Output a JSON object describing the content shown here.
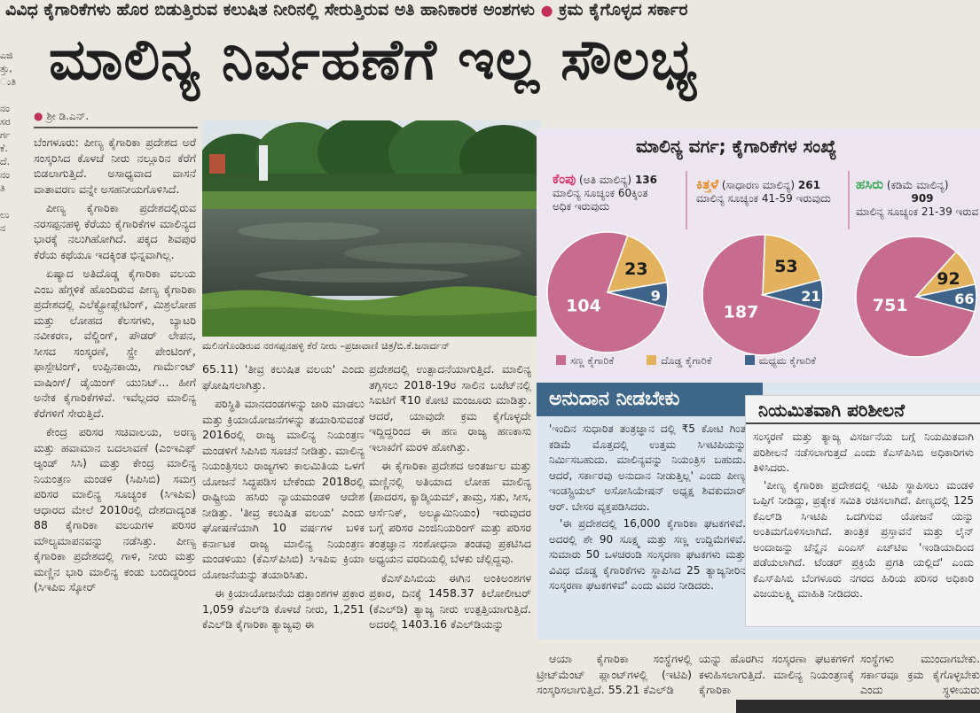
{
  "kicker": {
    "left": "ವಿವಿಧ ಕೈಗಾರಿಕೆಗಳು ಹೊರ ಬಿಡುತ್ತಿರುವ ಕಲುಷಿತ ನೀರಿನಲ್ಲಿ ಸೇರುತ್ತಿರುವ ಅತಿ ಹಾನಿಕಾರಕ ಅಂಶಗಳು",
    "dot": "●",
    "right": "ಕ್ರಮ ಕೈಗೊಳ್ಳದ ಸರ್ಕಾರ"
  },
  "headline": "ಮಾಲಿನ್ಯ ನಿರ್ವಹಣೆಗೆ ಇಲ್ಲ ಸೌಲಭ್ಯ",
  "left_strip": [
    "ಎಜಿ",
    "ತ್ತು,",
    "ುತಿ",
    "",
    "ನಂ",
    "ಸರ",
    "ರ್ಗ",
    "ಕೆ.",
    "ದೆ.",
    "ನಂ",
    "ತಿ",
    "",
    "ಲು",
    "ನ"
  ],
  "byline": {
    "bullet": "●",
    "name": "ಶ್ರೀ ಡಿ.ಎನ್."
  },
  "col1": {
    "paras": [
      "ಬೆಂಗಳೂರು: ಪೀಣ್ಯ ಕೈಗಾರಿಕಾ ಪ್ರದೇಶದ ಅರೆ ಸಂಸ್ಕರಿಸಿದ ಕೊಳಚೆ ನೀರು ನಲ್ಲೂರಿನ ಕೆರೆಗೆ ಬಿಡಲಾಗುತ್ತಿದೆ. ಅಸಾಧ್ಯವಾದ ವಾಸನೆ ವಾತಾವರಣ ವನ್ನೇ ಅಸಹನೀಯಗೊಳಿಸಿದೆ.",
      "ಪೀಣ್ಯ ಕೈಗಾರಿಕಾ ಪ್ರದೇಶದಲ್ಲಿರುವ ನರಸಪ್ಪನಹಳ್ಳಿ ಕೆರೆಯು ಕೈಗಾರಿಕೆಗಳ ಮಾಲಿನ್ಯದ ಭಾರಕ್ಕೆ ನಲುಗಿಹೋಗಿದೆ. ಪಕ್ಕದ ಶಿವಪುರ ಕೆರೆಯ ಕಥೆಯೂ ಇದಕ್ಕಿಂತ ಭಿನ್ನವಾಗಿಲ್ಲ.",
      "ಏಷ್ಯಾದ ಅತಿದೊಡ್ಡ ಕೈಗಾರಿಕಾ ವಲಯ ಎಂಬ ಹೆಗ್ಗಳಿಕೆ ಹೊಂದಿರುವ ಪೀಣ್ಯ ಕೈಗಾರಿಕಾ ಪ್ರದೇಶದಲ್ಲಿ ಎಲೆಕ್ಟ್ರೋಪ್ಲೇಟಿಂಗ್, ಮಿಶ್ರಲೋಹ ಮತ್ತು ಲೋಹದ ಕೆಲಸಗಳು, ಬ್ಯಾಟರಿ ನವೀಕರಣ, ವೆಲ್ಡಿಂಗ್, ಪೌಡರ್ ಲೇಪನ, ಸೀಸದ ಸಂಸ್ಕರಣೆ, ಸ್ಪ್ರೇ ಪೇಂಟಿಂಗ್, ಫಾಸ್ಪೇಟಿಂಗ್, ಉಪ್ಪಿನಕಾಯಿ, ಗಾರ್ಮೆಂಟ್ ವಾಷಿಂಗ್/ ಡೈಯಿಂಗ್ ಯುನಿಟ್... ಹೀಗೆ ಅನೇಕ ಕೈಗಾರಿಕೆಗಳಿವೆ. ಇವೆಲ್ಲದರ ಮಾಲಿನ್ಯ ಕೆರೆಗಳಿಗೆ ಸೇರುತ್ತಿದೆ.",
      "ಕೇಂದ್ರ ಪರಿಸರ ಸಚಿವಾಲಯ, ಅರಣ್ಯ ಮತ್ತು ಹವಾಮಾನ ಬದಲಾವಣೆ (ಎಂಇಎಫ್ ಆ್ಯಂಡ್ ಸಿಸಿ) ಮತ್ತು ಕೇಂದ್ರ ಮಾಲಿನ್ಯ ನಿಯಂತ್ರಣ ಮಂಡಳಿ (ಸಿಪಿಸಿಬಿ) ಸಮಗ್ರ ಪರಿಸರ ಮಾಲಿನ್ಯ ಸೂಚ್ಯಂಕ (ಸಿಇಪಿಐ) ಆಧಾರದ ಮೇಲೆ 2010ರಲ್ಲಿ ದೇಶದಾದ್ಯಂತ 88 ಕೈಗಾರಿಕಾ ವಲಯಗಳ ಪರಿಸರ ಮೌಲ್ಯಮಾಪನವನ್ನು ನಡೆಸಿತ್ತು. ಪೀಣ್ಯ ಕೈಗಾರಿಕಾ ಪ್ರದೇಶದಲ್ಲಿ ಗಾಳಿ, ನೀರು ಮತ್ತು ಮಣ್ಣಿನ ಭಾರಿ ಮಾಲಿನ್ಯ ಕಂಡು ಬಂದಿದ್ದರಿಂದ (ಸಿಇಪಿಐ ಸ್ಕೋರ್"
    ]
  },
  "photo": {
    "caption": "ಮಲಿನಗೊಂಡಿರುವ ನರಸಪ್ಪನಹಳ್ಳಿ ಕೆರೆ ನೀರು –ಪ್ರಜಾವಾಣಿ ಚಿತ್ರ/ಬಿ.ಕೆ.ಜನಾರ್ದನ್"
  },
  "col2": {
    "paras": [
      "65.11) 'ತೀವ್ರ ಕಲುಷಿತ ವಲಯ' ಎಂದು ಘೋಷಿಸಲಾಗಿತ್ತು.",
      "ಪರಿಸ್ಥಿತಿ ಮಾನದಂಡಗಳನ್ನು ಜಾರಿ ಮಾಡಲು ಮತ್ತು ಕ್ರಿಯಾಯೋಜನೆಗಳನ್ನು ತಯಾರಿಸುವಂತೆ 2016ರಲ್ಲಿ ರಾಜ್ಯ ಮಾಲಿನ್ಯ ನಿಯಂತ್ರಣ ಮಂಡಳಿಗೆ ಸಿಪಿಸಿಬಿ ಸೂಚನೆ ನೀಡಿತ್ತು. ಮಾಲಿನ್ಯ ನಿಯಂತ್ರಿಸಲು ರಾಜ್ಯಗಳು ಕಾಲಮಿತಿಯ ಒಳಗೆ ಯೋಜನೆ ಸಿದ್ಧಪಡಿಸ ಬೇಕೆಂದು 2018ರಲ್ಲಿ ರಾಷ್ಟ್ರೀಯ ಹಸಿರು ನ್ಯಾಯಮಂಡಳಿ ಆದೇಶ ನೀಡಿತ್ತು. 'ತೀವ್ರ ಕಲುಷಿತ ವಲಯ' ಎಂದು ಘೋಷಣೆಯಾಗಿ 10 ವರ್ಷಗಳ ಬಳಿಕ ಕರ್ನಾಟಕ ರಾಜ್ಯ ಮಾಲಿನ್ಯ ನಿಯಂತ್ರಣ ಮಂಡಳಿಯು (ಕೆಎಸ್‌ಪಿಸಿಬಿ) ಸಿಇಪಿಐ ಕ್ರಿಯಾ ಯೋಜನೆಯನ್ನು ತಯಾರಿಸಿತು.",
      "ಈ ಕ್ರಿಯಾಯೋಜನೆಯ ದತ್ತಾಂಶಗಳ ಪ್ರಕಾರ 1,059 ಕೆಎಲ್‌ಡಿ ಕೊಳಚೆ ನೀರು, 1,251 ಕೆಎಲ್‌ಡಿ ಕೈಗಾರಿಕಾ ತ್ಯಾಜ್ಯವು ಈ"
    ]
  },
  "col3": {
    "paras": [
      "ಪ್ರದೇಶದಲ್ಲಿ ಉತ್ಪಾದನೆಯಾಗುತ್ತಿದೆ. ಮಾಲಿನ್ಯ ತಗ್ಗಿಸಲು 2018-19ರ ಸಾಲಿನ ಬಜೆಟ್‌ನಲ್ಲಿ ಸಿಐಟಿಗೆ ₹10 ಕೋಟಿ ಮಂಜೂರು ಮಾಡಿತ್ತು. ಆದರೆ, ಯಾವುದೇ ಕ್ರಮ ಕೈಗೊಳ್ಳದೇ ಇದ್ದಿದ್ದರಿಂದ ಈ ಹಣ ರಾಜ್ಯ ಹಣಕಾಸು ಇಲಾಖೆಗೆ ಮರಳಿ ಹೋಗಿತ್ತು.",
      "ಈ ಕೈಗಾರಿಕಾ ಪ್ರದೇಶದ ಅಂತರ್ಜಲ ಮತ್ತು ಮಣ್ಣಿನಲ್ಲಿ ಅತಿಯಾದ ಲೋಹ ಮಾಲಿನ್ಯ (ಪಾದರಸ, ಕ್ಯಾಡ್ಮಿಯಮ್, ತಾಮ್ರ, ಸತು, ಸೀಸ, ಆರ್ಸೆನಿಕ್, ಅಲ್ಯೂಮಿನಿಯಂ) ಇರುವುದರ ಬಗ್ಗೆ ಪರಿಸರ ಎಂಜಿನಿಯರಿಂಗ್ ಮತ್ತು ಪರಿಸರ ತಂತ್ರಜ್ಞಾನ ಸಂಶೋಧನಾ ತಂಡವು ಪ್ರಕಟಿಸಿದ ಅಧ್ಯಯನ ವರದಿಯಲ್ಲಿ ಬೆಳಕು ಚೆಲ್ಲಿದ್ದವು.",
      "ಕೆಎಸ್‌ಪಿಸಿಬಿಯ ಈಗಿನ ಅಂಕಿಅಂಶಗಳ ಪ್ರಕಾರ, ದಿನಕ್ಕೆ 1458.37 ಕಿಲೋಲೀಟರ್ (ಕೆಎಲ್‌ಡಿ) ತ್ಯಾಜ್ಯ ನೀರು ಉತ್ಪತ್ತಿಯಾಗುತ್ತಿದೆ. ಅದರಲ್ಲಿ 1403.16 ಕೆಎಲ್‌ಡಿಯನ್ನು"
    ]
  },
  "infographic": {
    "title": "ಮಾಲಿನ್ಯ ವರ್ಗ; ಕೈಗಾರಿಕೆಗಳ ಸಂಖ್ಯೆ",
    "categories": [
      {
        "name": "ಕೆಂಪು",
        "desc": "(ಅತಿ ಮಾಲಿನ್ಯ)",
        "count": "136",
        "line2": "ಮಾಲಿನ್ಯ ಸೂಚ್ಯಂಕ 60ಕ್ಕಿಂತ",
        "line3": "ಅಧಿಕ ಇರುವುದು",
        "color": "#d8326b"
      },
      {
        "name": "ಕಿತ್ತಳೆ",
        "desc": "(ಸಾಧಾರಣ ಮಾಲಿನ್ಯ)",
        "count": "261",
        "line2": "ಮಾಲಿನ್ಯ ಸೂಚ್ಯಂಕ 41-59 ಇರುವುದು",
        "line3": "",
        "color": "#e58a1f"
      },
      {
        "name": "ಹಸಿರು",
        "desc": "(ಕಡಿಮೆ ಮಾಲಿನ್ಯ)",
        "count": "909",
        "line2": "ಮಾಲಿನ್ಯ ಸೂಚ್ಯಂಕ 21-39 ಇರುವ",
        "line3": "",
        "color": "#3aa655"
      }
    ],
    "legend": [
      "ಸಣ್ಣ ಕೈಗಾರಿಕೆ",
      "ದೊಡ್ಡ ಕೈಗಾರಿಕೆ",
      "ಮಧ್ಯಮ ಕೈಗಾರಿಕೆ"
    ],
    "colors": {
      "small": "#c76c8f",
      "large": "#e2b25e",
      "medium": "#40638a"
    }
  },
  "chart_data": [
    {
      "type": "pie",
      "title": "",
      "labels": [
        "ಸಣ್ಣ ಕೈಗಾರಿಕೆ",
        "ದೊಡ್ಡ ಕೈಗಾರಿಕೆ",
        "ಮಧ್ಯಮ ಕೈಗಾರಿಕೆ"
      ],
      "values": [
        104,
        23,
        9
      ]
    },
    {
      "type": "pie",
      "title": "",
      "labels": [
        "ಸಣ್ಣ ಕೈಗಾರಿಕೆ",
        "ದೊಡ್ಡ ಕೈಗಾರಿಕೆ",
        "ಮಧ್ಯಮ ಕೈಗಾರಿಕೆ"
      ],
      "values": [
        187,
        53,
        21
      ]
    },
    {
      "type": "pie",
      "title": "",
      "labels": [
        "ಸಣ್ಣ ಕೈಗಾರಿಕೆ",
        "ದೊಡ್ಡ ಕೈಗಾರಿಕೆ",
        "ಮಧ್ಯಮ ಕೈಗಾರಿಕೆ"
      ],
      "values": [
        751,
        92,
        66
      ]
    }
  ],
  "anudana": {
    "title": "ಅನುದಾನ ನೀಡಬೇಕು",
    "paras": [
      "'ಇಂದಿನ ಸುಧಾರಿತ ತಂತ್ರಜ್ಞಾನ ದಲ್ಲಿ ₹5 ಕೋಟಿ ಗಿಂತ ಕಡಿಮೆ ಮೊತ್ತದಲ್ಲಿ ಉತ್ತಮ ಸಿಇಟಿಪಿಯನ್ನು ನಿರ್ಮಿಸಬಹುದು. ಮಾಲಿನ್ಯವನ್ನು ನಿಯಂತ್ರಿಸ ಬಹುದು. ಆದರೆ, ಸರ್ಕಾರವು ಅನುದಾನ ನೀಡುತ್ತಿಲ್ಲ' ಎಂದು ಪೀಣ್ಯ ಇಂಡಸ್ಟ್ರಿಯಲ್ ಅಸೋಸಿಯೇಷನ್ ಅಧ್ಯಕ್ಷ ಶಿವಕುಮಾರ್ ಆರ್. ಬೇಸರ ವ್ಯಕ್ತಪಡಿಸಿದರು.",
      "'ಈ ಪ್ರದೇಶದಲ್ಲಿ 16,000 ಕೈಗಾರಿಕಾ ಘಟಕಗಳಿವೆ. ಅದರಲ್ಲಿ ಶೇ 90 ಸೂಕ್ಷ್ಮ ಮತ್ತು ಸಣ್ಣ ಉದ್ದಿಮೆಗಳಿವೆ. ಸುಮಾರು 50 ಒಳಚರಂಡಿ ಸಂಸ್ಕರಣಾ ಘಟಕಗಳು ಮತ್ತು ವಿವಿಧ ದೊಡ್ಡ ಕೈಗಾರಿಕೆಗಳು ಸ್ಥಾಪಿಸಿದ 25 ತ್ಯಾಜ್ಯನೀರಿನ ಸಂಸ್ಕರಣಾ ಘಟಕಗಳಿವೆ' ಎಂದು ವಿವರ ನೀಡಿದರು."
    ]
  },
  "niyamita": {
    "title": "ನಿಯಮಿತವಾಗಿ ಪರಿಶೀಲನೆ",
    "paras": [
      "ಸಂಸ್ಕರಣೆ ಮತ್ತು ತ್ಯಾಜ್ಯ ವಿಸರ್ಜನೆಯ ಬಗ್ಗೆ ನಿಯಮಿತವಾಗಿ ಪರಿಶೀಲನೆ ನಡೆಸಲಾಗುತ್ತದೆ ಎಂದು ಕೆಎಸ್‌ಪಿಸಿಬಿ ಅಧಿಕಾರಿಗಳು ತಿಳಿಸಿದರು.",
      "'ಪೀಣ್ಯ ಕೈಗಾರಿಕಾ ಪ್ರದೇಶದಲ್ಲಿ ಇಟಿಪಿ ಸ್ಥಾಪಿಸಲು ಮಂಡಳಿ ಒಪ್ಪಿಗೆ ನೀಡಿದ್ದು, ಪ್ರತ್ಯೇಕ ಸಮಿತಿ ರಚಿಸಲಾಗಿದೆ. ಪೀಣ್ಯದಲ್ಲಿ 125 ಕೆಎಲ್‌ಡಿ ಸಿಇಟಿಪಿ ಒದಗಿಸುವ ಯೋಜನೆ ಯನ್ನು ಅಂತಿಮಗೊಳಿಸಲಾಗಿದೆ. ತಾಂತ್ರಿಕ ಪ್ರಸ್ತಾವನೆ ಮತ್ತು ಲೈನ್ ಅಂದಾಜನ್ನು ಚೆನ್ನೈನ ಎಂಎಸ್ ಎಚ್‌ಟಿಐ 'ಇಂಡಿಯಾದಿಂದ ಪಡೆಯಲಾಗಿದೆ. ಟೆಂಡರ್ ಪ್ರಕ್ರಿಯೆ ಪ್ರಗತಿ ಯಲ್ಲಿದೆ' ಎಂದು ಕೆಎಸ್‌ಪಿಸಿಬಿ ಬೆಂಗಳೂರು ನಗರದ ಹಿರಿಯ ಪರಿಸರ ಅಧಿಕಾರಿ ವಿಜಯಲಕ್ಷ್ಮಿ ಮಾಹಿತಿ ನೀಡಿದರು."
    ]
  },
  "bottom": {
    "c1": "ಆಯಾ ಕೈಗಾರಿಕಾ ಸಂಸ್ಥೆಗಳಲ್ಲಿ ಟ್ರೀಟ್‌ಮೆಂಟ್ ಪ್ಲಾಂಟ್‌ಗಳಲ್ಲಿ (ಇಟಿಪಿ) ಸಂಸ್ಕರಿಸಲಾಗುತ್ತಿದೆ. 55.21 ಕೆಎಲ್‌ಡಿ",
    "c2": "ಯನ್ನು ಹೊರಗಿನ ಸಂಸ್ಕರಣಾ ಘಟಕಗಳಿಗೆ ಕಳುಹಿಸಲಾಗುತ್ತಿದೆ. ಮಾಲಿನ್ಯ ನಿಯಂತ್ರಣಕ್ಕೆ ಕೈಗಾರಿಕಾ",
    "c3": "ಸಂಸ್ಥೆಗಳು ಮುಂದಾಗಬೇಕು. ಸರ್ಕಾರವೂ ಕ್ರಮ ಕೈಗೊಳ್ಳಬೇಕು ಎಂದು ಸ್ಥಳೀಯರು ಒತ್ತಾಯಿಸಿದರು."
  }
}
